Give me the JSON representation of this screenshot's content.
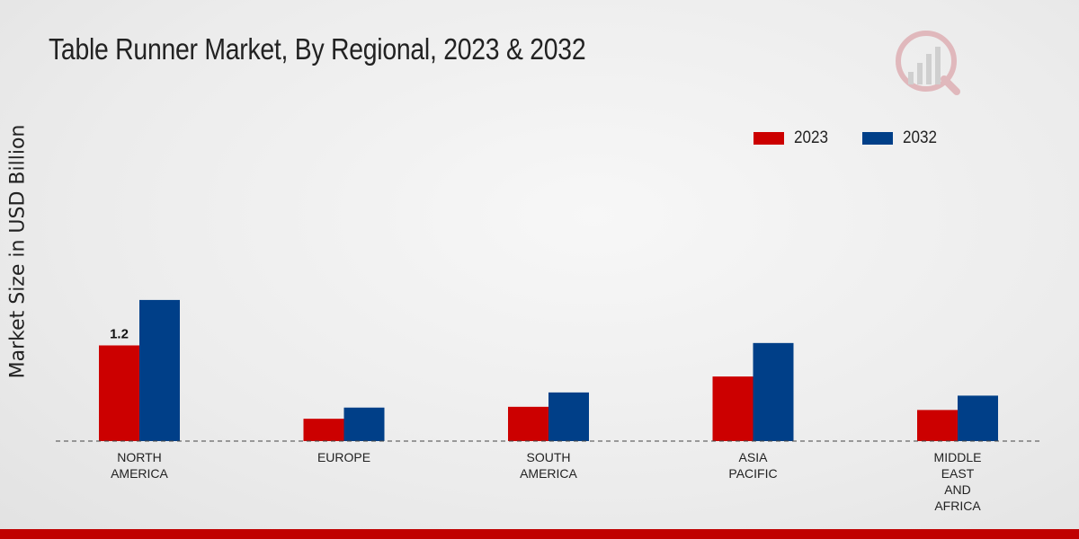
{
  "title": "Table Runner Market, By Regional, 2023 & 2032",
  "ylabel": "Market Size in USD Billion",
  "colors": {
    "2023": "#cc0000",
    "2032": "#003f88",
    "accent_bar": "#c00000"
  },
  "legend": {
    "item_0": "2023",
    "item_1": "2032"
  },
  "chart_data": {
    "type": "bar",
    "categories": [
      "NORTH\nAMERICA",
      "EUROPE",
      "SOUTH\nAMERICA",
      "ASIA\nPACIFIC",
      "MIDDLE\nEAST\nAND\nAFRICA"
    ],
    "series": [
      {
        "name": "2023",
        "values": [
          1.2,
          0.28,
          0.43,
          0.81,
          0.39
        ]
      },
      {
        "name": "2032",
        "values": [
          1.77,
          0.42,
          0.61,
          1.23,
          0.57
        ]
      }
    ],
    "data_labels": [
      {
        "series": "2023",
        "category_index": 0,
        "text": "1.2"
      }
    ],
    "ylabel": "Market Size in USD Billion",
    "ylim": [
      0,
      4.0
    ],
    "grid": false,
    "legend_position": "top-right"
  }
}
